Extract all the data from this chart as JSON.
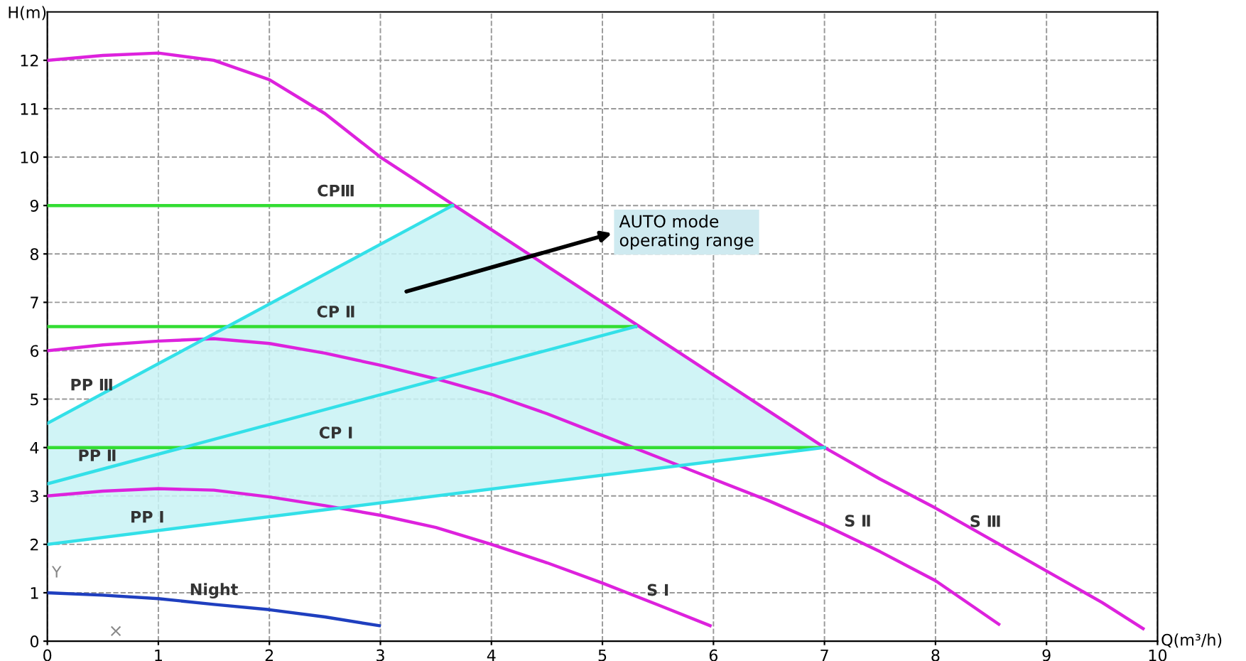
{
  "chart_data": {
    "type": "line",
    "xlabel": "Q(m³/h)",
    "ylabel": "H(m)",
    "xlim": [
      0,
      10
    ],
    "ylim": [
      0,
      13
    ],
    "xticks": [
      0,
      1,
      2,
      3,
      4,
      5,
      6,
      7,
      8,
      9,
      10
    ],
    "yticks": [
      0,
      1,
      2,
      3,
      4,
      5,
      6,
      7,
      8,
      9,
      10,
      11,
      12
    ],
    "grid": true,
    "line_style": "solid",
    "marker": "none",
    "series": [
      {
        "color": "#dd22dd",
        "x": [
          0,
          0.5,
          1,
          1.5,
          2,
          2.5,
          3,
          3.5,
          4,
          4.5,
          5,
          5.5,
          6,
          6.5,
          7,
          7.5,
          8,
          8.5,
          9,
          9.5,
          9.87
        ],
        "values": [
          12,
          12.1,
          12.15,
          12,
          11.6,
          10.9,
          10,
          9.25,
          8.5,
          7.75,
          7,
          6.25,
          5.5,
          4.75,
          4,
          3.35,
          2.75,
          2.1,
          1.45,
          0.8,
          0.26
        ]
      },
      {
        "color": "#dd22dd",
        "x": [
          0,
          0.5,
          1,
          1.5,
          2,
          2.5,
          3,
          3.5,
          4,
          4.5,
          5,
          5.5,
          6,
          6.5,
          7,
          7.5,
          8,
          8.57
        ],
        "values": [
          6,
          6.12,
          6.2,
          6.25,
          6.15,
          5.95,
          5.7,
          5.42,
          5.1,
          4.7,
          4.25,
          3.8,
          3.35,
          2.9,
          2.4,
          1.85,
          1.25,
          0.35
        ]
      },
      {
        "color": "#dd22dd",
        "x": [
          0,
          0.5,
          1,
          1.5,
          2,
          2.5,
          3,
          3.5,
          4,
          4.5,
          5,
          5.5,
          5.97
        ],
        "values": [
          3,
          3.1,
          3.15,
          3.12,
          2.98,
          2.8,
          2.6,
          2.35,
          2.0,
          1.62,
          1.2,
          0.75,
          0.32
        ]
      },
      {
        "color": "#1f3fbf",
        "x": [
          0,
          0.5,
          1,
          1.5,
          2,
          2.5,
          2.99
        ],
        "values": [
          1,
          0.95,
          0.88,
          0.76,
          0.65,
          0.5,
          0.32
        ]
      },
      {
        "color": "#33dd33",
        "x": [
          0,
          3.65
        ],
        "values": [
          9,
          9
        ]
      },
      {
        "color": "#33dd33",
        "x": [
          0,
          5.3
        ],
        "values": [
          6.5,
          6.5
        ]
      },
      {
        "color": "#33dd33",
        "x": [
          0,
          7
        ],
        "values": [
          4,
          4
        ]
      },
      {
        "color": "#33e0e8",
        "x": [
          0,
          3.65
        ],
        "values": [
          4.5,
          9
        ]
      },
      {
        "color": "#33e0e8",
        "x": [
          0,
          5.3
        ],
        "values": [
          3.25,
          6.5
        ]
      },
      {
        "color": "#33e0e8",
        "x": [
          0,
          7
        ],
        "values": [
          2,
          4
        ]
      }
    ],
    "annotations": [
      {
        "text": "S Ⅲ",
        "x": 8.45,
        "y": 2.17
      },
      {
        "text": "S Ⅱ",
        "x": 7.3,
        "y": 2.18
      },
      {
        "text": "S Ⅰ",
        "x": 5.5,
        "y": 0.75
      },
      {
        "text": "Night",
        "x": 1.5,
        "y": 0.76
      },
      {
        "text": "CPⅢ",
        "x": 2.6,
        "y": 9
      },
      {
        "text": "CP Ⅱ",
        "x": 2.6,
        "y": 6.5
      },
      {
        "text": "CP Ⅰ",
        "x": 2.6,
        "y": 4
      },
      {
        "text": "PP Ⅲ",
        "x": 0.4,
        "y": 4.99
      },
      {
        "text": "PP Ⅱ",
        "x": 0.45,
        "y": 3.53
      },
      {
        "text": "PP Ⅰ",
        "x": 0.9,
        "y": 2.26
      },
      "Y",
      "×",
      "AUTO mode\noperating range"
    ]
  }
}
